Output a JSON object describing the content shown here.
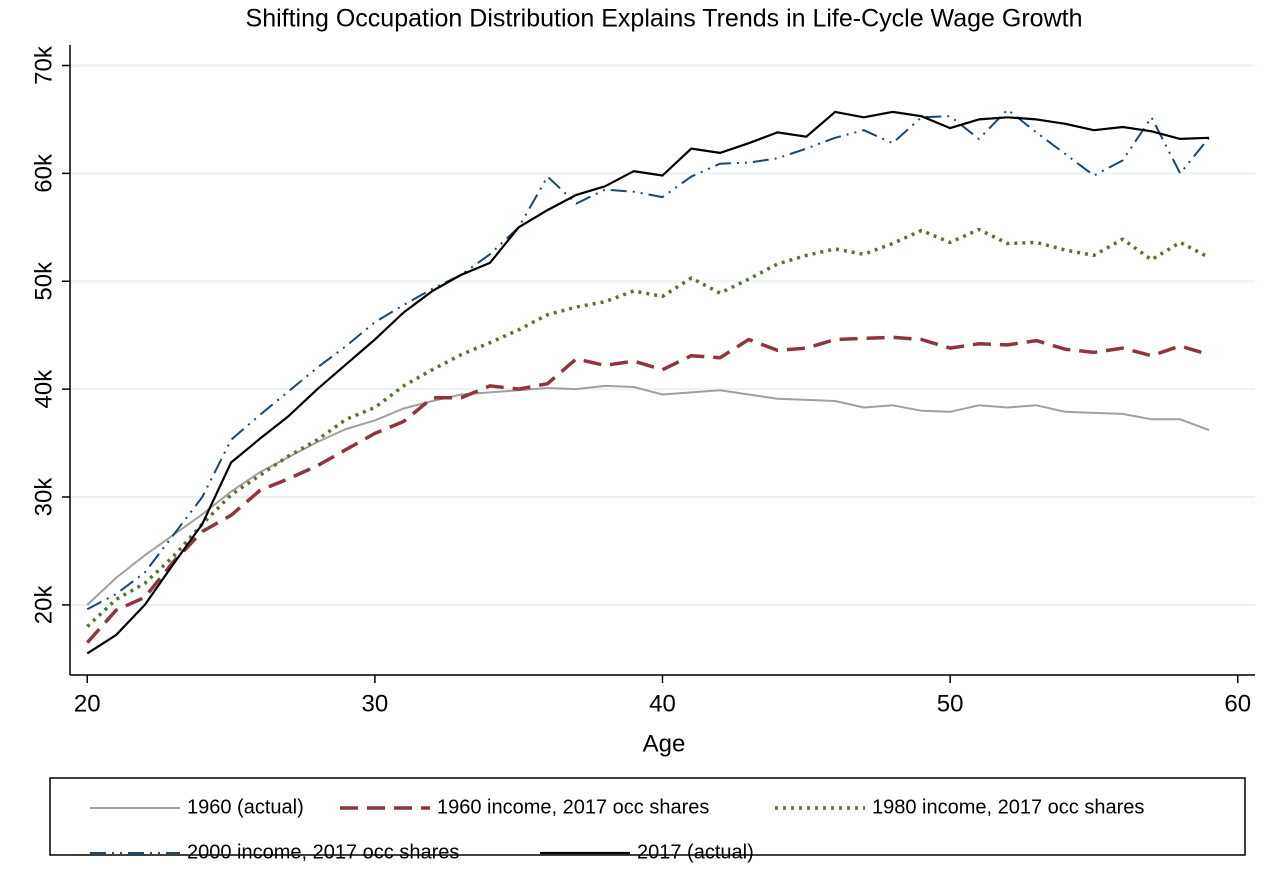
{
  "chart_data": {
    "type": "line",
    "title": "Shifting Occupation Distribution Explains Trends in Life-Cycle Wage Growth",
    "x_label": "Age",
    "x": [
      20,
      21,
      22,
      23,
      24,
      25,
      26,
      27,
      28,
      29,
      30,
      31,
      32,
      33,
      34,
      35,
      36,
      37,
      38,
      39,
      40,
      41,
      42,
      43,
      44,
      45,
      46,
      47,
      48,
      49,
      50,
      51,
      52,
      53,
      54,
      55,
      56,
      57,
      58,
      59
    ],
    "xlim": [
      19.4,
      60.6
    ],
    "xticks": [
      20,
      30,
      40,
      50,
      60
    ],
    "ylim": [
      13500,
      71900
    ],
    "yticks": [
      {
        "value": 20000,
        "label": "20k"
      },
      {
        "value": 30000,
        "label": "30k"
      },
      {
        "value": 40000,
        "label": "40k"
      },
      {
        "value": 50000,
        "label": "50k"
      },
      {
        "value": 60000,
        "label": "60k"
      },
      {
        "value": 70000,
        "label": "70k"
      }
    ],
    "grid": true,
    "series": [
      {
        "name": "1960 (actual)",
        "color": "#a0a0a0",
        "values": [
          20000,
          22500,
          24600,
          26500,
          28400,
          30500,
          32300,
          33700,
          35100,
          36300,
          37100,
          38200,
          38900,
          39500,
          39700,
          39900,
          40100,
          40000,
          40300,
          40200,
          39500,
          39700,
          39900,
          39500,
          39100,
          39000,
          38900,
          38300,
          38500,
          38000,
          37900,
          38500,
          38300,
          38500,
          37900,
          37800,
          37700,
          37200,
          37200,
          36200
        ]
      },
      {
        "name": "1960 income, 2017 occ shares",
        "color": "#90353b",
        "values": [
          16500,
          19500,
          20700,
          24000,
          26800,
          28300,
          30600,
          31700,
          32900,
          34400,
          35900,
          37000,
          39200,
          39200,
          40300,
          40000,
          40500,
          42800,
          42200,
          42600,
          41800,
          43100,
          42900,
          44600,
          43600,
          43800,
          44600,
          44700,
          44800,
          44600,
          43800,
          44200,
          44100,
          44500,
          43700,
          43400,
          43800,
          43100,
          44000,
          43200
        ]
      },
      {
        "name": "1980 income, 2017 occ shares",
        "color": "#55752f",
        "values": [
          18000,
          20500,
          22000,
          24500,
          27500,
          30200,
          32000,
          33800,
          35300,
          37200,
          38300,
          40300,
          41800,
          43200,
          44300,
          45500,
          46900,
          47600,
          48100,
          49100,
          48600,
          50300,
          48900,
          50200,
          51600,
          52400,
          53000,
          52500,
          53500,
          54700,
          53600,
          54800,
          53500,
          53600,
          52900,
          52400,
          53900,
          52000,
          53600,
          52200
        ]
      },
      {
        "name": "2000 income, 2017 occ shares",
        "color": "#1a476f",
        "values": [
          19600,
          21000,
          23000,
          26500,
          30000,
          35300,
          37600,
          39800,
          42000,
          44000,
          46200,
          47800,
          49300,
          50600,
          52500,
          55000,
          59700,
          57200,
          58500,
          58300,
          57800,
          59700,
          60900,
          61000,
          61400,
          62300,
          63300,
          64000,
          62800,
          65200,
          65300,
          63200,
          65900,
          63800,
          61800,
          59800,
          61200,
          65200,
          60000,
          63300
        ]
      },
      {
        "name": "2017 (actual)",
        "color": "#000000",
        "values": [
          15500,
          17200,
          20000,
          23800,
          27500,
          33200,
          35400,
          37500,
          40000,
          42300,
          44600,
          47100,
          49100,
          50600,
          51700,
          55000,
          56600,
          58000,
          58800,
          60200,
          59800,
          62300,
          61900,
          62800,
          63800,
          63400,
          65700,
          65200,
          65700,
          65300,
          64200,
          65000,
          65200,
          65000,
          64600,
          64000,
          64300,
          63900,
          63200,
          63300
        ]
      }
    ]
  }
}
